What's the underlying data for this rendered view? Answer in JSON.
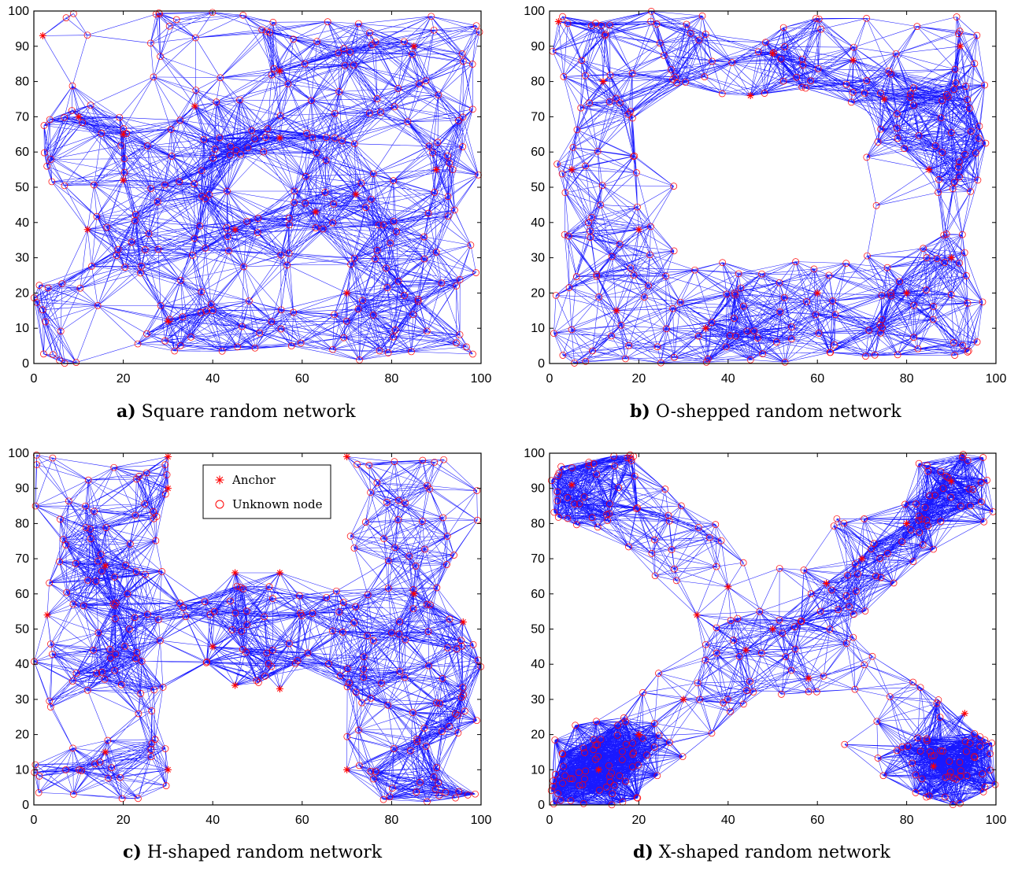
{
  "colors": {
    "edge": "#0000ff",
    "node": "#ff0000",
    "axis": "#000000",
    "background": "#ffffff"
  },
  "legend": {
    "entries": [
      {
        "label": "Anchor",
        "marker": "asterisk"
      },
      {
        "label": "Unknown node",
        "marker": "circle"
      }
    ]
  },
  "chart_data": [
    {
      "type": "scatter",
      "id": "a",
      "caption_letter": "a)",
      "caption_text": "Square random network",
      "shape": "square",
      "xlim": [
        0,
        100
      ],
      "ylim": [
        0,
        100
      ],
      "xticks": [
        0,
        20,
        40,
        60,
        80,
        100
      ],
      "yticks": [
        0,
        10,
        20,
        30,
        40,
        50,
        60,
        70,
        80,
        90,
        100
      ],
      "legend": false,
      "series": [
        {
          "marker": "asterisk",
          "values": [
            [
              2,
              93
            ],
            [
              20,
              65
            ],
            [
              36,
              73
            ],
            [
              55,
              64
            ],
            [
              63,
              43
            ],
            [
              72,
              48
            ],
            [
              45,
              38
            ],
            [
              20,
              52
            ],
            [
              10,
              70
            ],
            [
              85,
              90
            ],
            [
              90,
              55
            ],
            [
              30,
              12
            ],
            [
              70,
              20
            ],
            [
              12,
              38
            ],
            [
              55,
              83
            ]
          ]
        },
        {
          "marker": "circle",
          "values": []
        }
      ]
    },
    {
      "type": "scatter",
      "id": "b",
      "caption_letter": "b)",
      "caption_text": "O-shepped random network",
      "shape": "O",
      "xlim": [
        0,
        100
      ],
      "ylim": [
        0,
        100
      ],
      "xticks": [
        0,
        20,
        40,
        60,
        80,
        100
      ],
      "yticks": [
        0,
        10,
        20,
        30,
        40,
        50,
        60,
        70,
        80,
        90,
        100
      ],
      "legend": false,
      "series": [
        {
          "marker": "asterisk",
          "values": [
            [
              2,
              97
            ],
            [
              5,
              55
            ],
            [
              12,
              80
            ],
            [
              20,
              38
            ],
            [
              45,
              76
            ],
            [
              68,
              86
            ],
            [
              90,
              30
            ],
            [
              85,
              55
            ],
            [
              75,
              75
            ],
            [
              35,
              10
            ],
            [
              60,
              20
            ],
            [
              92,
              90
            ],
            [
              15,
              15
            ],
            [
              80,
              20
            ],
            [
              50,
              88
            ]
          ]
        },
        {
          "marker": "circle",
          "values": []
        }
      ]
    },
    {
      "type": "scatter",
      "id": "c",
      "caption_letter": "c)",
      "caption_text": "H-shaped random network",
      "shape": "H",
      "xlim": [
        0,
        100
      ],
      "ylim": [
        0,
        100
      ],
      "xticks": [
        0,
        20,
        40,
        60,
        80,
        100
      ],
      "yticks": [
        0,
        10,
        20,
        30,
        40,
        50,
        60,
        70,
        80,
        90,
        100
      ],
      "legend": true,
      "series": [
        {
          "marker": "asterisk",
          "values": [
            [
              45,
              66
            ],
            [
              55,
              66
            ],
            [
              45,
              34
            ],
            [
              55,
              33
            ],
            [
              30,
              99
            ],
            [
              30,
              90
            ],
            [
              30,
              10
            ],
            [
              70,
              99
            ],
            [
              70,
              10
            ],
            [
              16,
              15
            ],
            [
              16,
              68
            ],
            [
              3,
              54
            ],
            [
              96,
              52
            ],
            [
              85,
              60
            ],
            [
              40,
              45
            ]
          ]
        },
        {
          "marker": "circle",
          "values": []
        }
      ]
    },
    {
      "type": "scatter",
      "id": "d",
      "caption_letter": "d)",
      "caption_text": "X-shaped random network",
      "shape": "X",
      "xlim": [
        0,
        100
      ],
      "ylim": [
        0,
        100
      ],
      "xticks": [
        0,
        20,
        40,
        60,
        80,
        100
      ],
      "yticks": [
        0,
        10,
        20,
        30,
        40,
        50,
        60,
        70,
        80,
        90,
        100
      ],
      "legend": false,
      "series": [
        {
          "marker": "asterisk",
          "values": [
            [
              11,
              10
            ],
            [
              93,
              26
            ],
            [
              86,
              11
            ],
            [
              5,
              91
            ],
            [
              90,
              92
            ],
            [
              33,
              54
            ],
            [
              62,
              63
            ],
            [
              30,
              30
            ],
            [
              70,
              70
            ],
            [
              50,
              50
            ],
            [
              20,
              20
            ],
            [
              80,
              80
            ],
            [
              44,
              44
            ],
            [
              58,
              36
            ],
            [
              40,
              62
            ]
          ]
        },
        {
          "marker": "circle",
          "values": []
        }
      ]
    }
  ]
}
